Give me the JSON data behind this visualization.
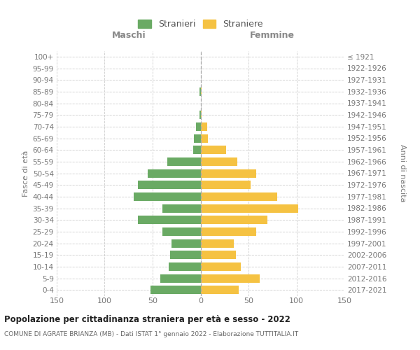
{
  "age_groups": [
    "100+",
    "95-99",
    "90-94",
    "85-89",
    "80-84",
    "75-79",
    "70-74",
    "65-69",
    "60-64",
    "55-59",
    "50-54",
    "45-49",
    "40-44",
    "35-39",
    "30-34",
    "25-29",
    "20-24",
    "15-19",
    "10-14",
    "5-9",
    "0-4"
  ],
  "birth_years": [
    "≤ 1921",
    "1922-1926",
    "1927-1931",
    "1932-1936",
    "1937-1941",
    "1942-1946",
    "1947-1951",
    "1952-1956",
    "1957-1961",
    "1962-1966",
    "1967-1971",
    "1972-1976",
    "1977-1981",
    "1982-1986",
    "1987-1991",
    "1992-1996",
    "1997-2001",
    "2002-2006",
    "2007-2011",
    "2012-2016",
    "2017-2021"
  ],
  "males": [
    0,
    0,
    0,
    1,
    0,
    1,
    5,
    7,
    8,
    35,
    55,
    65,
    70,
    40,
    65,
    40,
    30,
    32,
    33,
    42,
    52
  ],
  "females": [
    0,
    0,
    0,
    1,
    0,
    1,
    7,
    8,
    27,
    38,
    58,
    52,
    80,
    102,
    70,
    58,
    35,
    37,
    42,
    62,
    40
  ],
  "male_color": "#6aaa64",
  "female_color": "#f5c242",
  "center_line_color": "#aaaaaa",
  "grid_color": "#cccccc",
  "bg_color": "#ffffff",
  "title": "Popolazione per cittadinanza straniera per età e sesso - 2022",
  "subtitle": "COMUNE DI AGRATE BRIANZA (MB) - Dati ISTAT 1° gennaio 2022 - Elaborazione TUTTITALIA.IT",
  "ylabel_left": "Fasce di età",
  "ylabel_right": "Anni di nascita",
  "xlabel_left": "Maschi",
  "xlabel_right": "Femmine",
  "legend_males": "Stranieri",
  "legend_females": "Straniere",
  "xlim": 150
}
